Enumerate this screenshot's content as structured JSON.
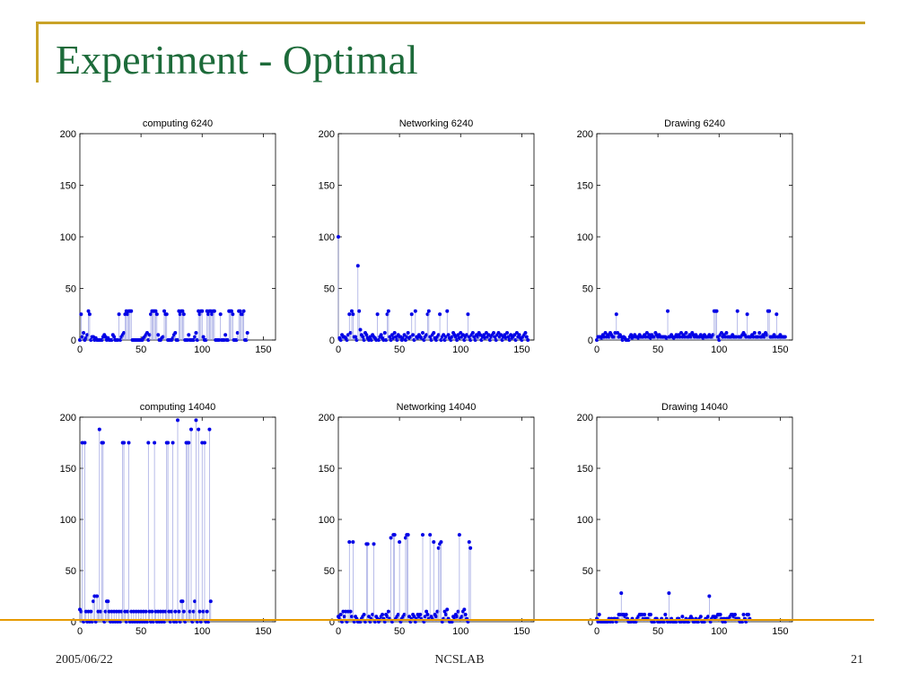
{
  "slide": {
    "title": "Experiment - Optimal",
    "footer_date": "2005/06/22",
    "footer_center": "NCSLAB",
    "page_number": "21",
    "accent_colors": {
      "frame": "#c9a227",
      "divider": "#e69a00",
      "title": "#1d6b3a",
      "marker": "#0000e6",
      "stem": "#9aa0e0"
    }
  },
  "chart_data": [
    {
      "type": "scatter",
      "title": "computing 6240",
      "xlim": [
        0,
        160
      ],
      "ylim": [
        0,
        200
      ],
      "xticks": [
        "0",
        "50",
        "100",
        "150"
      ],
      "yticks": [
        "0",
        "50",
        "100",
        "150",
        "200"
      ],
      "y": [
        0,
        25,
        3,
        7,
        0,
        2,
        5,
        28,
        25,
        0,
        3,
        3,
        0,
        2,
        0,
        0,
        0,
        0,
        0,
        3,
        5,
        3,
        0,
        2,
        0,
        0,
        0,
        5,
        3,
        0,
        0,
        0,
        25,
        0,
        3,
        5,
        7,
        25,
        28,
        25,
        28,
        28,
        28,
        0,
        0,
        0,
        0,
        0,
        0,
        0,
        0,
        0,
        2,
        3,
        5,
        7,
        0,
        5,
        25,
        28,
        28,
        28,
        28,
        25,
        5,
        0,
        0,
        2,
        3,
        28,
        25,
        25,
        0,
        0,
        0,
        0,
        2,
        5,
        7,
        0,
        0,
        28,
        25,
        28,
        28,
        25,
        0,
        0,
        0,
        5,
        0,
        0,
        0,
        0,
        3,
        7,
        0,
        28,
        25,
        28,
        28,
        3,
        0,
        0,
        28,
        25,
        28,
        28,
        25,
        28,
        28,
        0,
        0,
        0,
        0,
        25,
        0,
        0,
        0,
        5,
        0,
        0,
        28,
        28,
        28,
        25,
        0,
        0,
        0,
        7,
        28,
        28,
        25,
        25,
        28,
        0,
        0,
        7
      ]
    },
    {
      "type": "scatter",
      "title": "Networking 6240",
      "xlim": [
        0,
        160
      ],
      "ylim": [
        0,
        200
      ],
      "xticks": [
        "0",
        "50",
        "100",
        "150"
      ],
      "yticks": [
        "0",
        "50",
        "100",
        "150",
        "200"
      ],
      "y": [
        100,
        2,
        0,
        5,
        3,
        3,
        2,
        0,
        5,
        25,
        7,
        28,
        25,
        3,
        3,
        0,
        72,
        28,
        10,
        5,
        3,
        0,
        7,
        5,
        2,
        0,
        3,
        0,
        5,
        3,
        2,
        0,
        25,
        0,
        3,
        5,
        2,
        0,
        7,
        0,
        25,
        28,
        3,
        0,
        5,
        2,
        7,
        3,
        0,
        5,
        3,
        3,
        0,
        2,
        5,
        0,
        3,
        7,
        2,
        3,
        25,
        5,
        0,
        28,
        3,
        2,
        5,
        3,
        2,
        7,
        0,
        3,
        5,
        25,
        28,
        3,
        0,
        5,
        7,
        2,
        0,
        3,
        5,
        25,
        0,
        3,
        5,
        0,
        3,
        28,
        5,
        2,
        0,
        3,
        7,
        5,
        3,
        0,
        5,
        2,
        7,
        3,
        5,
        0,
        3,
        5,
        25,
        3,
        0,
        5,
        7,
        3,
        0,
        5,
        3,
        7,
        5,
        0,
        3,
        5,
        2,
        7,
        3,
        5,
        0,
        3,
        5,
        7,
        3,
        0,
        5,
        7,
        3,
        5,
        0,
        3,
        5,
        2,
        7,
        3,
        0,
        5,
        2,
        3,
        5,
        0,
        7,
        3,
        5,
        2,
        0,
        3,
        5,
        7,
        3,
        0
      ]
    },
    {
      "type": "scatter",
      "title": "Drawing 6240",
      "xlim": [
        0,
        160
      ],
      "ylim": [
        0,
        200
      ],
      "xticks": [
        "0",
        "50",
        "100",
        "150"
      ],
      "yticks": [
        "0",
        "50",
        "100",
        "150",
        "200"
      ],
      "y": [
        0,
        3,
        3,
        3,
        2,
        5,
        3,
        7,
        3,
        5,
        3,
        7,
        5,
        3,
        3,
        7,
        25,
        7,
        3,
        5,
        3,
        0,
        3,
        2,
        0,
        0,
        0,
        3,
        5,
        2,
        3,
        5,
        3,
        3,
        2,
        5,
        3,
        3,
        3,
        5,
        3,
        7,
        3,
        5,
        2,
        5,
        3,
        3,
        7,
        5,
        3,
        5,
        3,
        3,
        3,
        3,
        3,
        2,
        28,
        3,
        3,
        5,
        3,
        2,
        3,
        5,
        3,
        5,
        3,
        7,
        3,
        5,
        3,
        7,
        3,
        3,
        5,
        3,
        7,
        5,
        3,
        5,
        3,
        3,
        3,
        5,
        3,
        2,
        5,
        3,
        3,
        3,
        5,
        3,
        3,
        5,
        28,
        28,
        28,
        3,
        0,
        5,
        7,
        3,
        5,
        3,
        7,
        3,
        3,
        3,
        3,
        5,
        3,
        3,
        3,
        28,
        3,
        3,
        3,
        5,
        7,
        5,
        3,
        25,
        3,
        3,
        3,
        5,
        3,
        7,
        3,
        3,
        3,
        7,
        3,
        3,
        5,
        3,
        7,
        5,
        28,
        28,
        3,
        3,
        3,
        5,
        3,
        25,
        3,
        3,
        5,
        3,
        3,
        3,
        3
      ]
    },
    {
      "type": "scatter",
      "title": "computing 14040",
      "xlim": [
        0,
        160
      ],
      "ylim": [
        0,
        200
      ],
      "xticks": [
        "0",
        "50",
        "100",
        "150"
      ],
      "yticks": [
        "0",
        "50",
        "100",
        "150",
        "200"
      ],
      "y": [
        12,
        10,
        175,
        0,
        175,
        10,
        0,
        10,
        0,
        10,
        0,
        20,
        25,
        0,
        25,
        10,
        188,
        10,
        175,
        175,
        0,
        10,
        20,
        20,
        10,
        0,
        10,
        0,
        10,
        0,
        10,
        0,
        10,
        0,
        10,
        175,
        175,
        10,
        0,
        10,
        175,
        0,
        10,
        0,
        10,
        0,
        10,
        0,
        10,
        0,
        10,
        0,
        10,
        0,
        10,
        0,
        175,
        10,
        0,
        10,
        0,
        175,
        10,
        0,
        10,
        0,
        10,
        0,
        10,
        0,
        10,
        175,
        175,
        10,
        0,
        10,
        175,
        0,
        10,
        0,
        197,
        10,
        0,
        20,
        20,
        10,
        0,
        175,
        175,
        175,
        10,
        188,
        0,
        10,
        20,
        197,
        0,
        188,
        10,
        0,
        175,
        10,
        175,
        0,
        10,
        0,
        188,
        20
      ]
    },
    {
      "type": "scatter",
      "title": "Networking 14040",
      "xlim": [
        0,
        160
      ],
      "ylim": [
        0,
        200
      ],
      "xticks": [
        "0",
        "50",
        "100",
        "150"
      ],
      "yticks": [
        "0",
        "50",
        "100",
        "150",
        "200"
      ],
      "y": [
        5,
        3,
        7,
        0,
        10,
        5,
        10,
        0,
        10,
        78,
        10,
        5,
        78,
        0,
        5,
        3,
        0,
        0,
        0,
        3,
        5,
        7,
        0,
        76,
        76,
        5,
        0,
        3,
        7,
        76,
        0,
        5,
        3,
        0,
        2,
        5,
        7,
        3,
        0,
        7,
        5,
        10,
        3,
        82,
        0,
        85,
        85,
        3,
        5,
        7,
        78,
        0,
        3,
        5,
        7,
        82,
        85,
        85,
        5,
        0,
        3,
        7,
        5,
        0,
        3,
        7,
        5,
        7,
        3,
        85,
        0,
        5,
        10,
        7,
        3,
        85,
        5,
        3,
        78,
        7,
        5,
        10,
        72,
        76,
        78,
        0,
        3,
        10,
        7,
        12,
        3,
        0,
        0,
        0,
        5,
        3,
        7,
        5,
        10,
        85,
        3,
        5,
        10,
        12,
        7,
        3,
        0,
        78,
        72
      ]
    },
    {
      "type": "scatter",
      "title": "Drawing 14040",
      "xlim": [
        0,
        160
      ],
      "ylim": [
        0,
        200
      ],
      "xticks": [
        "0",
        "50",
        "100",
        "150"
      ],
      "yticks": [
        "0",
        "50",
        "100",
        "150",
        "200"
      ],
      "y": [
        3,
        0,
        7,
        0,
        0,
        0,
        0,
        0,
        0,
        0,
        3,
        0,
        3,
        0,
        3,
        3,
        0,
        3,
        7,
        7,
        28,
        7,
        7,
        5,
        7,
        3,
        0,
        0,
        0,
        3,
        0,
        0,
        0,
        3,
        5,
        7,
        7,
        7,
        3,
        7,
        3,
        3,
        3,
        7,
        7,
        0,
        0,
        0,
        3,
        3,
        0,
        0,
        0,
        3,
        0,
        0,
        7,
        3,
        0,
        28,
        0,
        3,
        0,
        0,
        0,
        0,
        3,
        3,
        0,
        0,
        5,
        0,
        0,
        3,
        0,
        0,
        3,
        5,
        3,
        0,
        0,
        3,
        0,
        0,
        3,
        5,
        0,
        0,
        0,
        3,
        3,
        5,
        25,
        0,
        3,
        5,
        5,
        3,
        5,
        7,
        7,
        7,
        3,
        0,
        3,
        0,
        3,
        3,
        3,
        5,
        7,
        7,
        5,
        7,
        3,
        3,
        3,
        0,
        0,
        0,
        7,
        3,
        0,
        7,
        7,
        3
      ]
    }
  ]
}
